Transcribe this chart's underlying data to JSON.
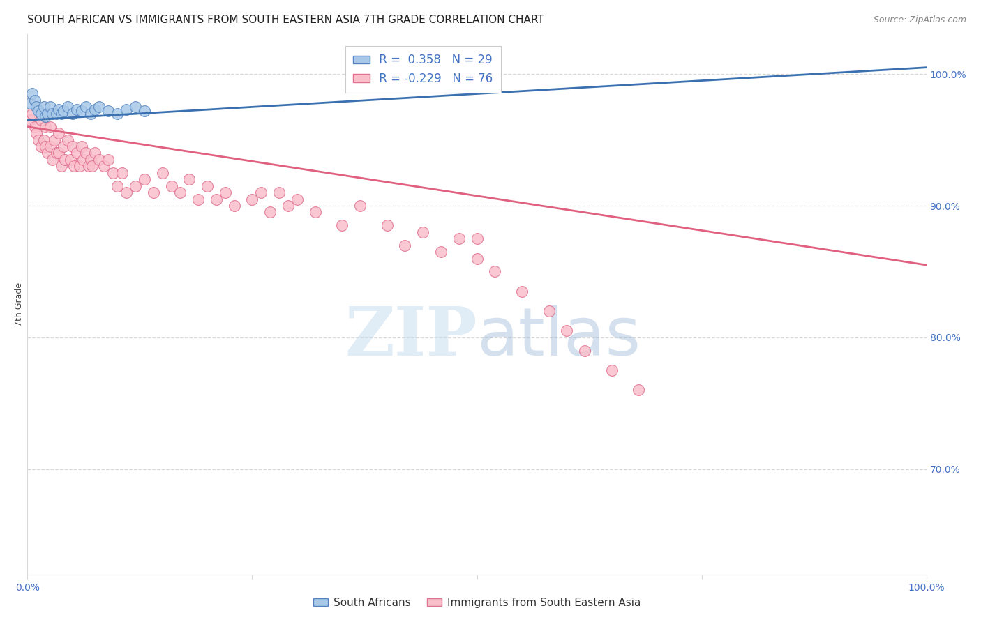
{
  "title": "SOUTH AFRICAN VS IMMIGRANTS FROM SOUTH EASTERN ASIA 7TH GRADE CORRELATION CHART",
  "source": "Source: ZipAtlas.com",
  "ylabel": "7th Grade",
  "R_blue": 0.358,
  "N_blue": 29,
  "R_pink": -0.229,
  "N_pink": 76,
  "legend_blue": "South Africans",
  "legend_pink": "Immigrants from South Eastern Asia",
  "blue_scatter_x": [
    0.3,
    0.5,
    0.8,
    1.0,
    1.2,
    1.5,
    1.8,
    2.0,
    2.2,
    2.5,
    2.8,
    3.2,
    3.5,
    3.8,
    4.0,
    4.5,
    5.0,
    5.5,
    6.0,
    6.5,
    7.0,
    7.5,
    8.0,
    9.0,
    10.0,
    11.0,
    12.0,
    13.0,
    36.0
  ],
  "blue_scatter_y": [
    97.8,
    98.5,
    98.0,
    97.5,
    97.2,
    97.0,
    97.5,
    96.8,
    97.0,
    97.5,
    97.0,
    97.0,
    97.3,
    97.0,
    97.2,
    97.5,
    97.0,
    97.3,
    97.2,
    97.5,
    97.0,
    97.3,
    97.5,
    97.2,
    97.0,
    97.3,
    97.5,
    97.2,
    100.0
  ],
  "pink_scatter_x": [
    0.3,
    0.5,
    0.8,
    1.0,
    1.2,
    1.5,
    1.5,
    1.8,
    2.0,
    2.0,
    2.2,
    2.5,
    2.5,
    2.8,
    3.0,
    3.2,
    3.5,
    3.5,
    3.8,
    4.0,
    4.2,
    4.5,
    4.8,
    5.0,
    5.2,
    5.5,
    5.8,
    6.0,
    6.2,
    6.5,
    6.8,
    7.0,
    7.2,
    7.5,
    8.0,
    8.5,
    9.0,
    9.5,
    10.0,
    10.5,
    11.0,
    12.0,
    13.0,
    14.0,
    15.0,
    16.0,
    17.0,
    18.0,
    19.0,
    20.0,
    21.0,
    22.0,
    23.0,
    25.0,
    26.0,
    27.0,
    28.0,
    29.0,
    30.0,
    32.0,
    35.0,
    37.0,
    40.0,
    42.0,
    44.0,
    46.0,
    48.0,
    50.0,
    52.0,
    55.0,
    58.0,
    60.0,
    62.0,
    65.0,
    68.0,
    50.0
  ],
  "pink_scatter_y": [
    96.5,
    97.0,
    96.0,
    95.5,
    95.0,
    96.5,
    94.5,
    95.0,
    96.0,
    94.5,
    94.0,
    96.0,
    94.5,
    93.5,
    95.0,
    94.0,
    95.5,
    94.0,
    93.0,
    94.5,
    93.5,
    95.0,
    93.5,
    94.5,
    93.0,
    94.0,
    93.0,
    94.5,
    93.5,
    94.0,
    93.0,
    93.5,
    93.0,
    94.0,
    93.5,
    93.0,
    93.5,
    92.5,
    91.5,
    92.5,
    91.0,
    91.5,
    92.0,
    91.0,
    92.5,
    91.5,
    91.0,
    92.0,
    90.5,
    91.5,
    90.5,
    91.0,
    90.0,
    90.5,
    91.0,
    89.5,
    91.0,
    90.0,
    90.5,
    89.5,
    88.5,
    90.0,
    88.5,
    87.0,
    88.0,
    86.5,
    87.5,
    86.0,
    85.0,
    83.5,
    82.0,
    80.5,
    79.0,
    77.5,
    76.0,
    87.5
  ],
  "blue_line_x": [
    0.0,
    100.0
  ],
  "blue_line_y": [
    96.5,
    100.5
  ],
  "pink_line_x": [
    0.0,
    100.0
  ],
  "pink_line_y": [
    96.0,
    85.5
  ],
  "xlim": [
    0.0,
    100.0
  ],
  "ylim": [
    62.0,
    103.0
  ],
  "blue_color": "#a8c8e8",
  "pink_color": "#f9bfcb",
  "blue_edge_color": "#5585c0",
  "pink_edge_color": "#e07090",
  "blue_line_color": "#3a70b0",
  "pink_line_color": "#e06080",
  "title_fontsize": 11,
  "axis_label_color": "#444444",
  "right_axis_color": "#4472c4",
  "watermark_zip": "ZIP",
  "watermark_atlas": "atlas",
  "background_color": "#ffffff",
  "grid_color": "#d8d8d8",
  "ytick_vals": [
    70,
    80,
    90,
    100
  ],
  "ytick_labels": [
    "70.0%",
    "80.0%",
    "90.0%",
    "100.0%"
  ]
}
